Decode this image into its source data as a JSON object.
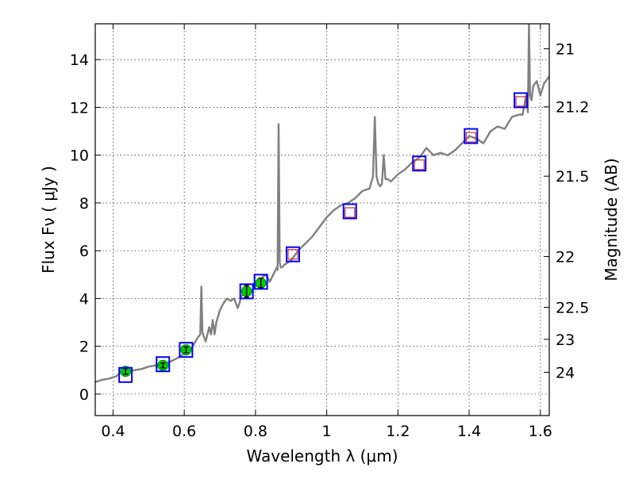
{
  "chart_data": {
    "type": "line",
    "xlabel": "Wavelength  λ (μm)",
    "ylabel": "Flux  Fν  ( μJy )",
    "y2label": "Magnitude (AB)",
    "xlim": [
      0.35,
      1.625
    ],
    "ylim": [
      -0.9,
      15.5
    ],
    "grid": true,
    "xticks": [
      {
        "value": 0.4,
        "label": "0.4"
      },
      {
        "value": 0.6,
        "label": "0.6"
      },
      {
        "value": 0.8,
        "label": "0.8"
      },
      {
        "value": 1.0,
        "label": "1"
      },
      {
        "value": 1.2,
        "label": "1.2"
      },
      {
        "value": 1.4,
        "label": "1.4"
      },
      {
        "value": 1.6,
        "label": "1.6"
      }
    ],
    "yticks": [
      {
        "value": 0,
        "label": "0"
      },
      {
        "value": 2,
        "label": "2"
      },
      {
        "value": 4,
        "label": "4"
      },
      {
        "value": 6,
        "label": "6"
      },
      {
        "value": 8,
        "label": "8"
      },
      {
        "value": 10,
        "label": "10"
      },
      {
        "value": 12,
        "label": "12"
      },
      {
        "value": 14,
        "label": "14"
      }
    ],
    "y2ticks": [
      {
        "value": 21,
        "label": "21"
      },
      {
        "value": 21.2,
        "label": "21.2"
      },
      {
        "value": 21.5,
        "label": "21.5"
      },
      {
        "value": 22,
        "label": "22"
      },
      {
        "value": 22.5,
        "label": "22.5"
      },
      {
        "value": 23,
        "label": "23"
      },
      {
        "value": 24,
        "label": "24"
      }
    ],
    "series": [
      {
        "kind": "spectrum-line",
        "color": "#808080",
        "x": [
          0.35,
          0.37,
          0.39,
          0.41,
          0.42,
          0.44,
          0.46,
          0.48,
          0.5,
          0.52,
          0.54,
          0.56,
          0.58,
          0.6,
          0.62,
          0.635,
          0.645,
          0.648,
          0.651,
          0.655,
          0.66,
          0.67,
          0.675,
          0.68,
          0.685,
          0.69,
          0.7,
          0.71,
          0.72,
          0.73,
          0.74,
          0.75,
          0.755,
          0.76,
          0.77,
          0.78,
          0.79,
          0.8,
          0.81,
          0.82,
          0.83,
          0.84,
          0.85,
          0.86,
          0.862,
          0.865,
          0.868,
          0.871,
          0.875,
          0.88,
          0.9,
          0.92,
          0.94,
          0.96,
          0.98,
          1.0,
          1.02,
          1.04,
          1.06,
          1.08,
          1.1,
          1.12,
          1.13,
          1.135,
          1.14,
          1.145,
          1.15,
          1.155,
          1.16,
          1.165,
          1.17,
          1.18,
          1.2,
          1.22,
          1.24,
          1.26,
          1.28,
          1.3,
          1.32,
          1.34,
          1.36,
          1.38,
          1.4,
          1.42,
          1.44,
          1.46,
          1.48,
          1.5,
          1.52,
          1.54,
          1.55,
          1.56,
          1.565,
          1.568,
          1.571,
          1.575,
          1.58,
          1.59,
          1.6,
          1.61,
          1.625
        ],
        "y": [
          0.5,
          0.6,
          0.65,
          0.75,
          0.9,
          0.95,
          1.0,
          1.05,
          1.15,
          1.2,
          1.25,
          1.35,
          1.5,
          1.7,
          1.9,
          2.3,
          2.5,
          4.5,
          2.6,
          2.4,
          2.2,
          2.8,
          2.5,
          3.1,
          2.5,
          3.0,
          3.5,
          3.8,
          4.0,
          3.9,
          4.0,
          3.6,
          3.8,
          4.1,
          4.2,
          4.4,
          4.3,
          4.5,
          4.6,
          4.9,
          5.0,
          4.7,
          5.0,
          5.3,
          5.2,
          11.3,
          5.5,
          5.3,
          5.3,
          5.4,
          5.6,
          6.0,
          6.3,
          6.6,
          7.0,
          7.4,
          7.7,
          7.9,
          8.0,
          8.2,
          8.5,
          8.6,
          9.1,
          11.6,
          9.1,
          8.8,
          8.7,
          8.8,
          10.0,
          9.0,
          9.0,
          8.9,
          9.2,
          9.4,
          9.7,
          9.9,
          10.3,
          10.0,
          10.1,
          10.0,
          10.2,
          10.5,
          10.8,
          10.7,
          10.5,
          11.0,
          11.2,
          11.1,
          11.6,
          11.7,
          11.7,
          12.5,
          11.8,
          15.5,
          12.5,
          12.3,
          12.9,
          13.1,
          12.5,
          13.0,
          13.3
        ]
      },
      {
        "kind": "observed-photometry",
        "color": "#00cc00",
        "points": [
          {
            "x": 0.435,
            "y": 0.95,
            "err": 0.12
          },
          {
            "x": 0.54,
            "y": 1.2,
            "err": 0.1
          },
          {
            "x": 0.605,
            "y": 1.85,
            "err": 0.12
          },
          {
            "x": 0.775,
            "y": 4.3,
            "err": 0.25
          },
          {
            "x": 0.815,
            "y": 4.65,
            "err": 0.2
          }
        ]
      },
      {
        "kind": "model-photometry",
        "color": "#0000ff",
        "points": [
          {
            "x": 0.435,
            "y": 0.8
          },
          {
            "x": 0.54,
            "y": 1.25
          },
          {
            "x": 0.605,
            "y": 1.85
          },
          {
            "x": 0.775,
            "y": 4.3
          },
          {
            "x": 0.815,
            "y": 4.7
          },
          {
            "x": 0.905,
            "y": 5.85
          },
          {
            "x": 1.065,
            "y": 7.65
          },
          {
            "x": 1.26,
            "y": 9.65
          },
          {
            "x": 1.405,
            "y": 10.8
          },
          {
            "x": 1.545,
            "y": 12.3
          }
        ]
      },
      {
        "kind": "upper-limit-photometry",
        "color": "#cc3333",
        "points": [
          {
            "x": 0.905,
            "y": 5.85
          },
          {
            "x": 1.065,
            "y": 7.6
          },
          {
            "x": 1.26,
            "y": 9.6
          },
          {
            "x": 1.405,
            "y": 10.75
          },
          {
            "x": 1.545,
            "y": 12.25
          }
        ]
      }
    ]
  }
}
